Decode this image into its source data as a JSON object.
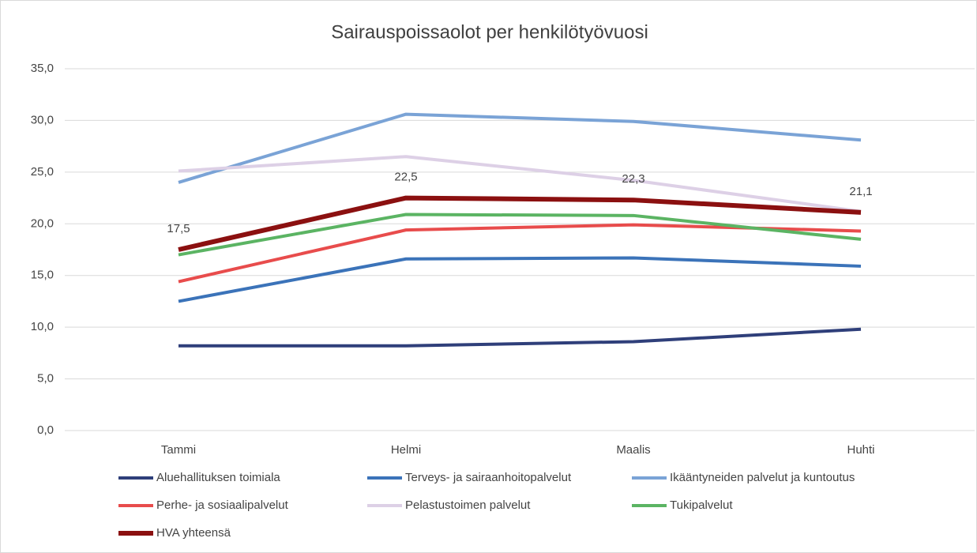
{
  "chart_data": {
    "type": "line",
    "title": "Sairauspoissaolot per henkilötyövuosi",
    "categories": [
      "Tammi",
      "Helmi",
      "Maalis",
      "Huhti"
    ],
    "series": [
      {
        "name": "Aluehallituksen toimiala",
        "color": "#2f3f7a",
        "values": [
          8.2,
          8.2,
          8.6,
          9.8
        ]
      },
      {
        "name": "Terveys- ja sairaanhoitopalvelut",
        "color": "#3b73b9",
        "values": [
          12.5,
          16.6,
          16.7,
          15.9
        ]
      },
      {
        "name": "Ikääntyneiden palvelut ja kuntoutus",
        "color": "#7aa3d6",
        "values": [
          24.0,
          30.6,
          29.9,
          28.1
        ]
      },
      {
        "name": "Perhe- ja sosiaalipalvelut",
        "color": "#e84c4c",
        "values": [
          14.4,
          19.4,
          19.9,
          19.3
        ]
      },
      {
        "name": "Pelastustoimen palvelut",
        "color": "#ddd0e6",
        "values": [
          25.1,
          26.5,
          24.2,
          21.2
        ]
      },
      {
        "name": "Tukipalvelut",
        "color": "#5bb463",
        "values": [
          17.0,
          20.9,
          20.8,
          18.5
        ]
      },
      {
        "name": "HVA yhteensä",
        "color": "#8b1010",
        "values": [
          17.5,
          22.5,
          22.3,
          21.1
        ],
        "value_labels": [
          "17,5",
          "22,5",
          "22,3",
          "21,1"
        ]
      }
    ],
    "ylim": [
      0,
      35
    ],
    "yticks": [
      {
        "value": 0,
        "label": "0,0"
      },
      {
        "value": 5,
        "label": "5,0"
      },
      {
        "value": 10,
        "label": "10,0"
      },
      {
        "value": 15,
        "label": "15,0"
      },
      {
        "value": 20,
        "label": "20,0"
      },
      {
        "value": 25,
        "label": "25,0"
      },
      {
        "value": 30,
        "label": "30,0"
      },
      {
        "value": 35,
        "label": "35,0"
      }
    ],
    "grid": true
  }
}
